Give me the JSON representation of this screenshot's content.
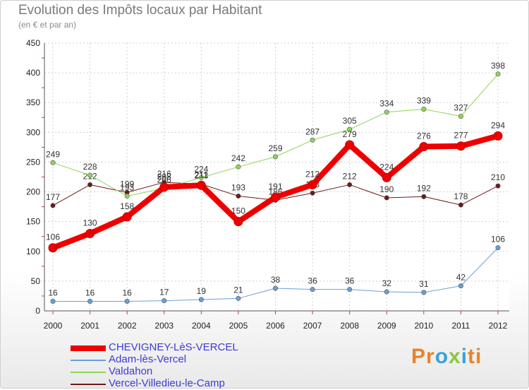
{
  "title": "Evolution des Impôts locaux par Habitant",
  "subtitle": "(en € et par an)",
  "logo": {
    "parts": [
      "Pr",
      "o",
      "x",
      "i",
      "ti"
    ],
    "colors": [
      "#e8832a",
      "#3aa3d6",
      "#8cc63f",
      "#3aa3d6",
      "#e8832a"
    ]
  },
  "chart_data": {
    "type": "line",
    "x": [
      2000,
      2001,
      2002,
      2003,
      2004,
      2005,
      2006,
      2007,
      2008,
      2009,
      2010,
      2011,
      2012
    ],
    "ylim": [
      0,
      450
    ],
    "yticks": [
      0,
      50,
      100,
      150,
      200,
      250,
      300,
      350,
      400,
      450
    ],
    "grid": true,
    "legend_position": "bottom-left",
    "series": [
      {
        "name": "Vercel-Villedieu-le-Camp",
        "color": "#6b1a1a",
        "width": 1,
        "values": [
          177,
          212,
          199,
          216,
          213,
          193,
          186,
          198,
          212,
          190,
          192,
          178,
          210
        ]
      },
      {
        "name": "Valdahon",
        "color": "#8fd45a",
        "width": 1,
        "values": [
          249,
          228,
          193,
          206,
          224,
          242,
          259,
          287,
          305,
          334,
          339,
          327,
          398
        ]
      },
      {
        "name": "Adam-lès-Vercel",
        "color": "#6a9fd6",
        "width": 1,
        "values": [
          16,
          16,
          16,
          17,
          19,
          21,
          38,
          36,
          36,
          32,
          31,
          42,
          106
        ]
      },
      {
        "name": "CHEVIGNEY-LèS-VERCEL",
        "color": "#ee0000",
        "width": 8,
        "values": [
          106,
          130,
          158,
          208,
          211,
          150,
          191,
          212,
          279,
          224,
          276,
          277,
          294
        ]
      }
    ],
    "legend_order": [
      "CHEVIGNEY-LèS-VERCEL",
      "Adam-lès-Vercel",
      "Valdahon",
      "Vercel-Villedieu-le-Camp"
    ]
  }
}
